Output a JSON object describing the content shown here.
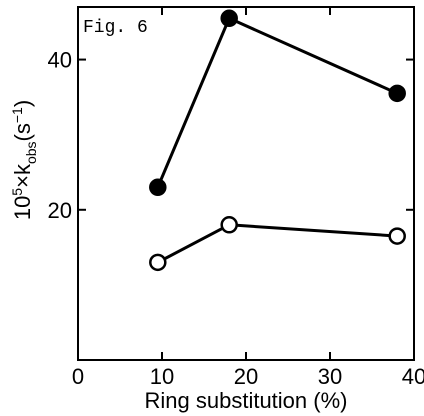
{
  "figure_label": "Fig. 6",
  "chart_data": {
    "type": "line",
    "title": "",
    "xlabel": "Ring substitution (%)",
    "ylabel": "10⁵×kobs(s⁻¹)",
    "ylabel_parts": {
      "prefix_base": "10",
      "prefix_exp": "5",
      "times": "×",
      "symbol": "k",
      "symbol_sub": "obs",
      "unit_open": "(s",
      "unit_exp": "−1",
      "unit_close": ")"
    },
    "xlim": [
      0,
      40
    ],
    "ylim": [
      0,
      47
    ],
    "x_ticks": [
      0,
      10,
      20,
      30,
      40
    ],
    "x_tick_labels": [
      "0",
      "10",
      "20",
      "30",
      "40"
    ],
    "y_ticks": [
      20,
      40
    ],
    "y_tick_labels": [
      "20",
      "40"
    ],
    "grid": false,
    "legend": "none",
    "series": [
      {
        "marker": "filled-circle",
        "color": "#000000",
        "x": [
          9.5,
          18,
          38
        ],
        "y": [
          23,
          45.5,
          35.5
        ]
      },
      {
        "marker": "open-circle",
        "color": "#000000",
        "x": [
          9.5,
          18,
          38
        ],
        "y": [
          13,
          18,
          16.5
        ]
      }
    ]
  }
}
